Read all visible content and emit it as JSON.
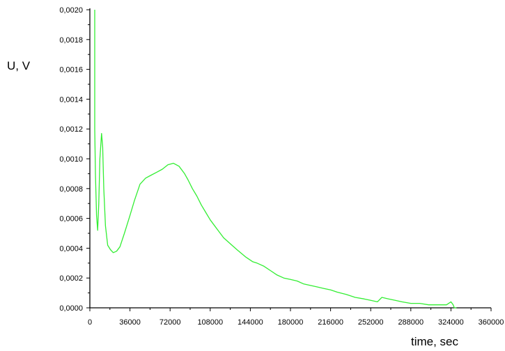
{
  "chart_data": {
    "type": "line",
    "title": "",
    "xlabel": "time, sec",
    "ylabel": "U, V",
    "xlim": [
      0,
      360000
    ],
    "ylim": [
      0,
      0.002
    ],
    "grid": false,
    "x_ticks": [
      "0",
      "36000",
      "72000",
      "108000",
      "144000",
      "180000",
      "216000",
      "252000",
      "288000",
      "324000",
      "360000"
    ],
    "y_ticks": [
      "0,0000",
      "0,0002",
      "0,0004",
      "0,0006",
      "0,0008",
      "0,0010",
      "0,0012",
      "0,0014",
      "0,0016",
      "0,0018",
      "0,0020"
    ],
    "x_tick_values": [
      0,
      36000,
      72000,
      108000,
      144000,
      180000,
      216000,
      252000,
      288000,
      324000,
      360000
    ],
    "y_tick_values": [
      0,
      0.0002,
      0.0004,
      0.0006,
      0.0008,
      0.001,
      0.0012,
      0.0014,
      0.0016,
      0.0018,
      0.002
    ],
    "series": [
      {
        "color": "#33ee33",
        "x": [
          4400,
          4400,
          5000,
          6000,
          7000,
          8000,
          9000,
          10500,
          11500,
          12500,
          14000,
          16000,
          18500,
          21000,
          24000,
          27000,
          31000,
          36000,
          40000,
          45000,
          50000,
          55000,
          60000,
          65000,
          70000,
          75000,
          80000,
          85000,
          88000,
          92000,
          96000,
          100000,
          104000,
          108000,
          112000,
          116000,
          120000,
          126000,
          132000,
          140000,
          146000,
          150000,
          156000,
          162000,
          168000,
          174000,
          180000,
          186000,
          192000,
          198000,
          204000,
          210000,
          216000,
          222000,
          230000,
          238000,
          246000,
          252000,
          258000,
          262000,
          268000,
          274000,
          280000,
          288000,
          296000,
          304000,
          312000,
          318000,
          320000,
          322000,
          324000,
          326000,
          327000,
          329000
        ],
        "y": [
          0.002,
          0.0012,
          0.0009,
          0.00062,
          0.00052,
          0.0007,
          0.001,
          0.00117,
          0.00108,
          0.0008,
          0.00055,
          0.00042,
          0.00039,
          0.00037,
          0.00038,
          0.00041,
          0.0005,
          0.00062,
          0.00072,
          0.00083,
          0.00087,
          0.00089,
          0.00091,
          0.00093,
          0.00096,
          0.00097,
          0.00095,
          0.0009,
          0.00086,
          0.0008,
          0.00075,
          0.00069,
          0.00064,
          0.00059,
          0.00055,
          0.00051,
          0.00047,
          0.00043,
          0.00039,
          0.00034,
          0.00031,
          0.0003,
          0.00028,
          0.00025,
          0.00022,
          0.0002,
          0.00019,
          0.00018,
          0.00016,
          0.00015,
          0.00014,
          0.00013,
          0.00012,
          0.000105,
          9e-05,
          7e-05,
          6e-05,
          5e-05,
          4e-05,
          7e-05,
          6e-05,
          5e-05,
          4e-05,
          3e-05,
          3e-05,
          2e-05,
          2e-05,
          2e-05,
          2e-05,
          3e-05,
          4e-05,
          2e-05,
          0.0,
          0.0
        ]
      }
    ]
  }
}
